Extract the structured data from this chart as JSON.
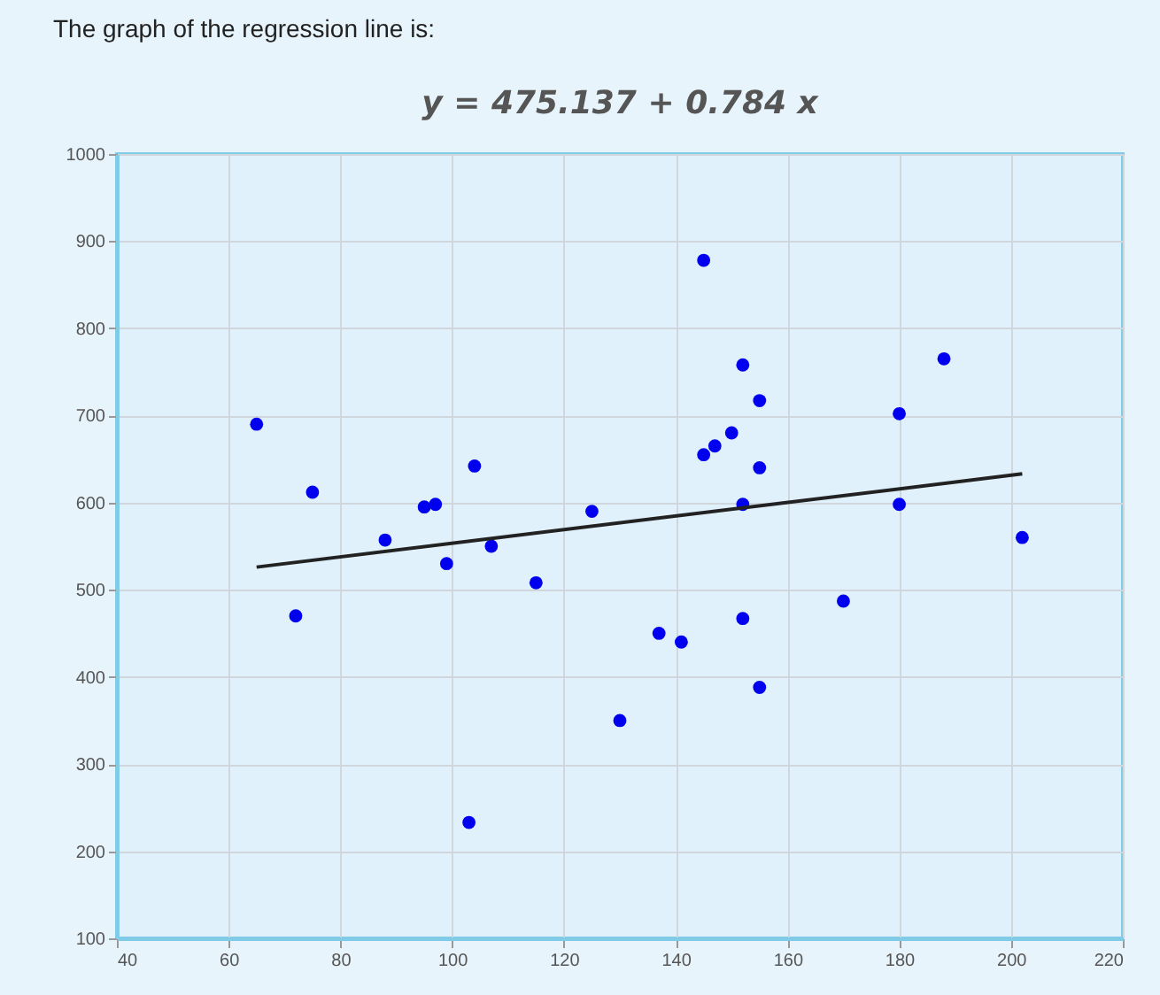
{
  "chart_data": {
    "type": "scatter",
    "title": "The graph of the regression line is:",
    "subtitle": "y = 475.137 + 0.784 x",
    "xlim": [
      40,
      220
    ],
    "xticks": [
      40,
      60,
      80,
      100,
      120,
      140,
      160,
      180,
      200,
      220
    ],
    "ylim": [
      100,
      1000
    ],
    "yticks": [
      100,
      200,
      300,
      400,
      500,
      600,
      700,
      800,
      900,
      1000
    ],
    "grid": true,
    "line_style": "solid",
    "series": [
      {
        "marker": "circle",
        "color": "#0000ee",
        "x": [
          65,
          72,
          75,
          88,
          95,
          97,
          99,
          104,
          103,
          107,
          115,
          125,
          130,
          137,
          141,
          145,
          145,
          147,
          150,
          152,
          152,
          152,
          155,
          155,
          155,
          170,
          180,
          180,
          188,
          202
        ],
        "values": [
          690,
          470,
          612,
          557,
          595,
          598,
          530,
          642,
          233,
          550,
          508,
          590,
          350,
          450,
          440,
          878,
          655,
          665,
          680,
          758,
          598,
          467,
          717,
          640,
          388,
          487,
          702,
          598,
          765,
          560
        ]
      },
      {
        "type": "line",
        "color": "#222222",
        "x": [
          65,
          202
        ],
        "values": [
          526,
          633
        ]
      }
    ]
  }
}
